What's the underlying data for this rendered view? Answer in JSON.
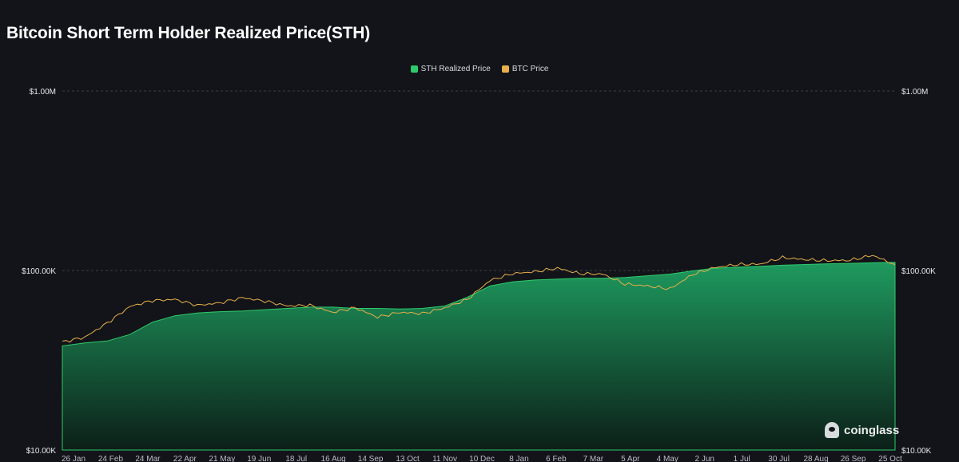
{
  "title": "Bitcoin Short Term Holder Realized Price(STH)",
  "legend": [
    {
      "label": "STH Realized Price",
      "color": "#2fca6b"
    },
    {
      "label": "BTC Price",
      "color": "#e8b04b"
    }
  ],
  "watermark": "coinglass",
  "chart_data": {
    "type": "area",
    "scale": "log",
    "ylim": [
      10000,
      1000000
    ],
    "y_tick_labels": [
      "$1.00M",
      "$100.00K",
      "$10.00K"
    ],
    "x_ticks": [
      "26 Jan",
      "24 Feb",
      "24 Mar",
      "22 Apr",
      "21 May",
      "19 Jun",
      "18 Jul",
      "16 Aug",
      "14 Sep",
      "13 Oct",
      "11 Nov",
      "10 Dec",
      "8 Jan",
      "6 Feb",
      "7 Mar",
      "5 Apr",
      "4 May",
      "2 Jun",
      "1 Jul",
      "30 Jul",
      "28 Aug",
      "26 Sep",
      "25 Oct"
    ],
    "grid": true,
    "legend_position": "top-center",
    "series": [
      {
        "name": "STH Realized Price",
        "color": "#2fca6b",
        "values": [
          38000,
          39500,
          40500,
          44000,
          51500,
          56000,
          58000,
          59000,
          59500,
          60500,
          61500,
          62500,
          62500,
          61500,
          61500,
          61000,
          61500,
          63500,
          71000,
          82000,
          86500,
          88500,
          89500,
          90500,
          90500,
          91500,
          93500,
          95500,
          99500,
          103000,
          104500,
          105500,
          107000,
          108000,
          109000,
          109500,
          110500,
          111000
        ]
      },
      {
        "name": "BTC Price",
        "color": "#e8b04b",
        "values": [
          40000,
          42500,
          51000,
          63000,
          68000,
          69000,
          64000,
          66000,
          70500,
          67500,
          63500,
          64000,
          58500,
          62000,
          55000,
          58500,
          57500,
          62000,
          69000,
          88000,
          96000,
          98500,
          103000,
          96000,
          95500,
          84000,
          82000,
          79000,
          95000,
          104000,
          108000,
          108500,
          118000,
          115000,
          113500,
          114000,
          121500,
          108000
        ]
      }
    ]
  }
}
